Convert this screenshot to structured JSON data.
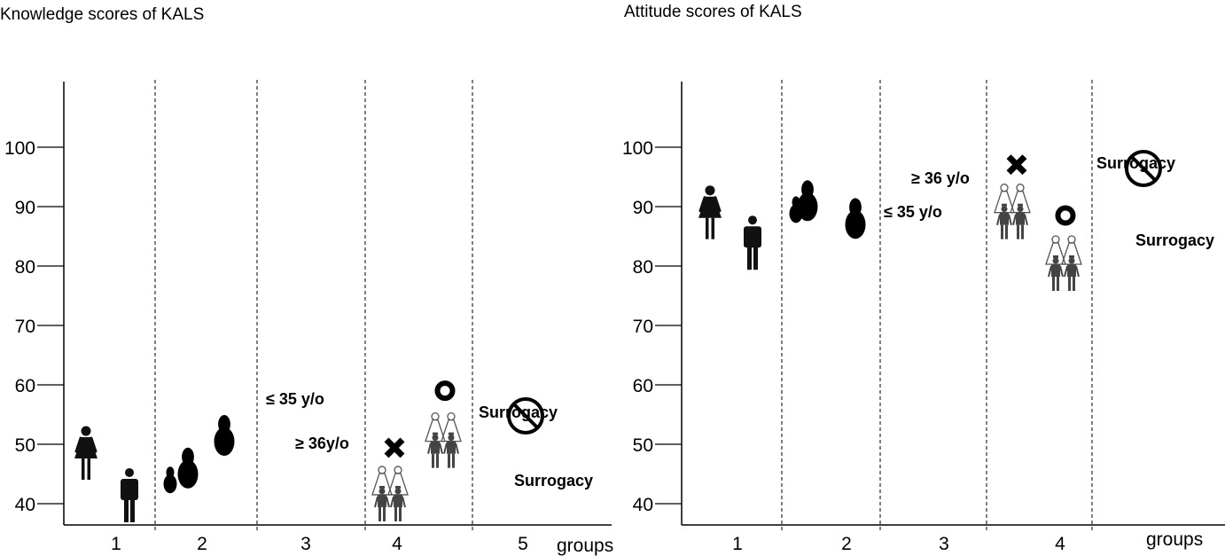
{
  "chart_data": [
    {
      "type": "scatter",
      "title": "Knowledge scores of KALS",
      "xlabel": "groups",
      "ylabel": "",
      "yticks": [
        40,
        50,
        60,
        70,
        80,
        90,
        100
      ],
      "ylim": [
        36,
        110
      ],
      "categories": [
        "1",
        "2",
        "3",
        "4",
        "5"
      ],
      "annotations": {
        "le35": "≤ 35 y/o",
        "ge36": "≥ 36y/o",
        "surrogacy_top": "Surrogacy",
        "surrogacy_bottom": "Surrogacy"
      },
      "points": [
        {
          "group": "1",
          "icon": "female-icon",
          "value": 48.5
        },
        {
          "group": "1",
          "icon": "male-icon",
          "value": 41.5
        },
        {
          "group": "2",
          "icon": "pregnant-small-icon",
          "value": 44
        },
        {
          "group": "2",
          "icon": "pregnant-medium-icon",
          "value": 46
        },
        {
          "group": "2",
          "icon": "pregnant-large-icon",
          "value": 51.5
        },
        {
          "group": "4",
          "icon": "same-sex-couple-icon",
          "marker": "x",
          "value": 41.5
        },
        {
          "group": "4",
          "icon": "same-sex-couple-icon",
          "marker": "o",
          "value": 50.5
        }
      ]
    },
    {
      "type": "scatter",
      "title": "Attitude scores of KALS",
      "xlabel": "groups",
      "ylabel": "",
      "yticks": [
        40,
        50,
        60,
        70,
        80,
        90,
        100
      ],
      "ylim": [
        36,
        110
      ],
      "categories": [
        "1",
        "2",
        "3",
        "4"
      ],
      "annotations": {
        "le35": "≤ 35 y/o",
        "ge36": "≥ 36 y/o",
        "surrogacy_top": "Surrogacy",
        "surrogacy_bottom": "Surrogacy"
      },
      "points": [
        {
          "group": "1",
          "icon": "female-icon",
          "value": 89
        },
        {
          "group": "1",
          "icon": "male-icon",
          "value": 84
        },
        {
          "group": "2",
          "icon": "pregnant-small-icon",
          "value": 89.5
        },
        {
          "group": "2",
          "icon": "pregnant-medium-icon",
          "value": 91
        },
        {
          "group": "2",
          "icon": "pregnant-large-icon",
          "value": 88
        },
        {
          "group": "4",
          "icon": "same-sex-couple-icon",
          "marker": "x",
          "value": 89
        },
        {
          "group": "4",
          "icon": "same-sex-couple-icon",
          "marker": "o",
          "value": 80.3
        }
      ]
    }
  ]
}
